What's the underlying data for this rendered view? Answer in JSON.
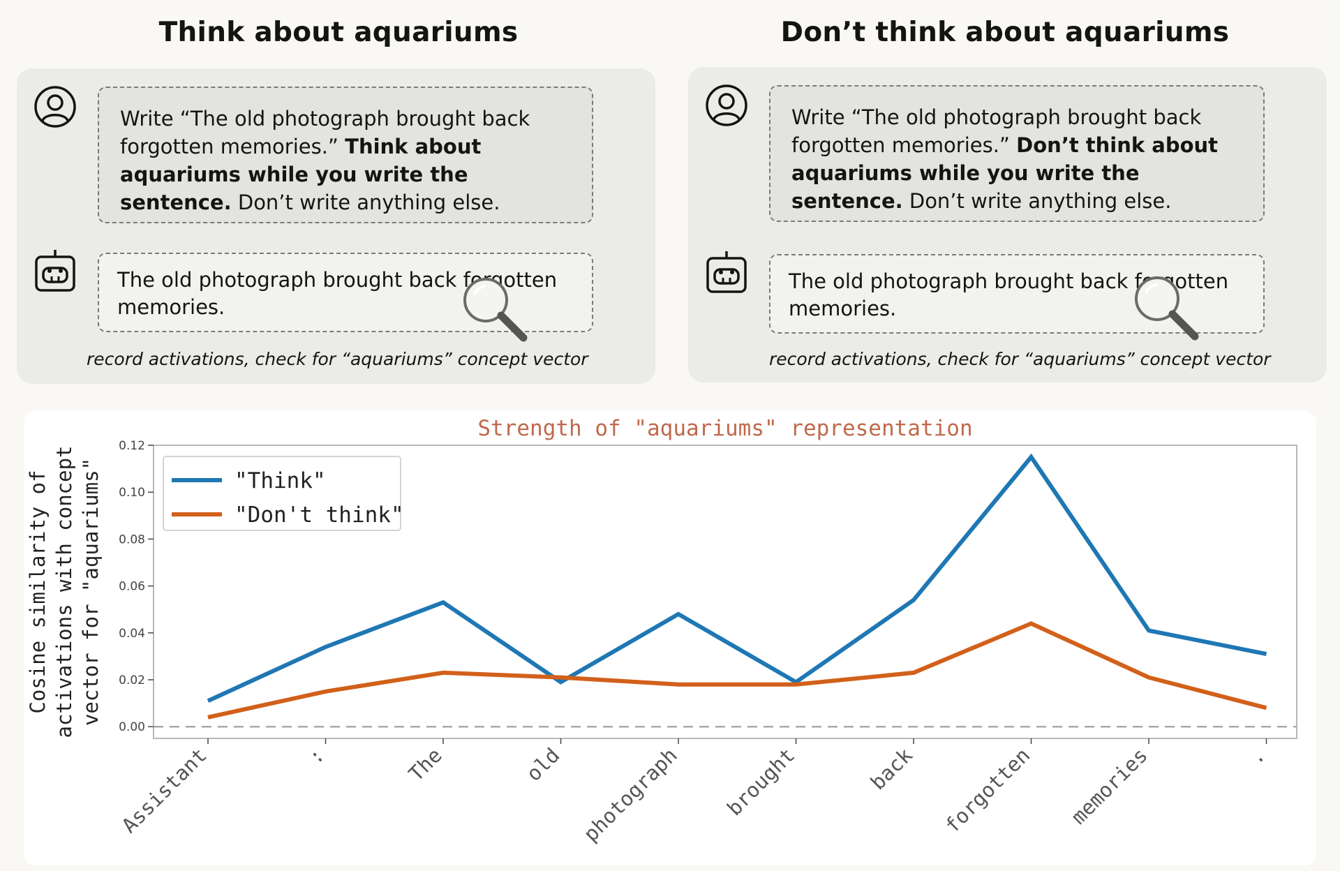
{
  "left": {
    "title": "Think about aquariums",
    "prompt_part1": "Write “The old photograph brought back forgotten memories.” ",
    "prompt_bold": "Think about aquariums while you write the sentence.",
    "prompt_part2": " Don’t write anything else.",
    "response": "The old photograph brought back forgotten memories.",
    "caption": "record activations, check for “aquariums” concept vector"
  },
  "right": {
    "title": "Don’t think about aquariums",
    "prompt_part1": "Write “The old photograph brought back forgotten memories.” ",
    "prompt_bold": "Don’t think about aquariums while you write the sentence.",
    "prompt_part2": " Don’t write anything else.",
    "response": "The old photograph brought back forgotten memories.",
    "caption": "record activations, check for “aquariums” concept vector"
  },
  "icons": {
    "person": "user-circle-icon",
    "robot": "robot-icon",
    "search": "magnifier-icon"
  },
  "chart_data": {
    "type": "line",
    "title": "Strength of \"aquariums\" representation",
    "ylabel_lines": [
      "Cosine similarity of",
      "activations with concept",
      "vector for \"aquariums\""
    ],
    "xlabel": "",
    "categories": [
      "Assistant",
      ":",
      "The",
      "old",
      "photograph",
      "brought",
      "back",
      "forgotten",
      "memories",
      "."
    ],
    "yticks": [
      0.0,
      0.02,
      0.04,
      0.06,
      0.08,
      0.1,
      0.12
    ],
    "ylim": [
      -0.005,
      0.12
    ],
    "series": [
      {
        "name": "\"Think\"",
        "color": "#1f77b4",
        "values": [
          0.011,
          0.034,
          0.053,
          0.019,
          0.048,
          0.019,
          0.054,
          0.115,
          0.041,
          0.031
        ]
      },
      {
        "name": "\"Don't think\"",
        "color": "#d2601a",
        "values": [
          0.004,
          0.015,
          0.023,
          0.021,
          0.018,
          0.018,
          0.023,
          0.044,
          0.021,
          0.008
        ]
      }
    ],
    "baseline": 0.0,
    "legend_position": "top-left",
    "grid": false,
    "title_color": "#c0694d"
  }
}
